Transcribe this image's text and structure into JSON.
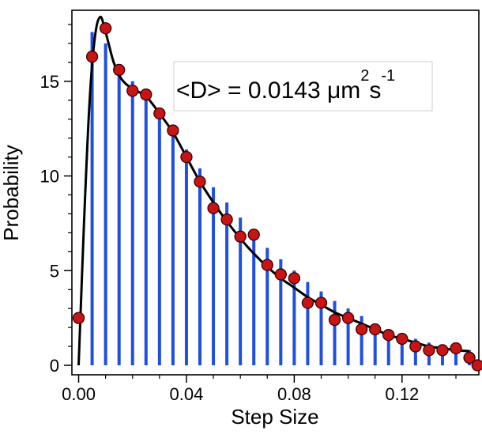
{
  "chart_data": {
    "type": "scatter",
    "xlabel": "Step Size",
    "ylabel": "Probability",
    "xlim": [
      -0.0025,
      0.1485
    ],
    "ylim": [
      -0.5,
      18.75
    ],
    "xticks": [
      0.0,
      0.04,
      0.08,
      0.12
    ],
    "xtick_labels": [
      "0.00",
      "0.04",
      "0.08",
      "0.12"
    ],
    "yticks": [
      0,
      5,
      10,
      15
    ],
    "ytick_labels": [
      "0",
      "5",
      "10",
      "15"
    ],
    "annotation": {
      "main": "<D> = 0.0143 μm",
      "sup1": "2",
      "mid": "s",
      "sup2": "-1"
    },
    "series": [
      {
        "kind": "stems",
        "color": "#1f4fe0",
        "x": [
          0.005,
          0.01,
          0.015,
          0.02,
          0.025,
          0.03,
          0.035,
          0.04,
          0.045,
          0.05,
          0.055,
          0.06,
          0.065,
          0.07,
          0.075,
          0.08,
          0.085,
          0.09,
          0.095,
          0.1,
          0.105,
          0.11,
          0.115,
          0.12,
          0.125,
          0.13,
          0.135,
          0.14,
          0.145
        ],
        "y": [
          17.6,
          17.0,
          15.9,
          15.0,
          14.2,
          13.4,
          12.4,
          11.4,
          10.4,
          9.4,
          8.6,
          7.8,
          7.0,
          6.2,
          5.6,
          5.0,
          4.4,
          3.9,
          3.4,
          3.0,
          2.6,
          2.2,
          1.9,
          1.6,
          1.4,
          1.2,
          1.0,
          0.9,
          0.8
        ]
      },
      {
        "kind": "markers",
        "color": "#c81414",
        "x": [
          0.0,
          0.005,
          0.01,
          0.015,
          0.02,
          0.025,
          0.03,
          0.035,
          0.04,
          0.045,
          0.05,
          0.055,
          0.06,
          0.065,
          0.07,
          0.075,
          0.08,
          0.085,
          0.09,
          0.095,
          0.1,
          0.105,
          0.11,
          0.115,
          0.12,
          0.125,
          0.13,
          0.135,
          0.14,
          0.145,
          0.148
        ],
        "y": [
          2.5,
          16.3,
          17.8,
          15.6,
          14.5,
          14.3,
          13.3,
          12.4,
          11.0,
          9.7,
          8.3,
          7.7,
          6.8,
          6.9,
          5.3,
          4.8,
          4.6,
          3.3,
          3.3,
          2.4,
          2.5,
          1.9,
          1.9,
          1.6,
          1.4,
          1.0,
          0.8,
          0.8,
          0.9,
          0.4,
          0.0
        ]
      },
      {
        "kind": "fit",
        "color": "#000000",
        "x": [
          0.0,
          0.002,
          0.004,
          0.006,
          0.008,
          0.01,
          0.013,
          0.016,
          0.02,
          0.025,
          0.03,
          0.035,
          0.04,
          0.045,
          0.05,
          0.055,
          0.06,
          0.065,
          0.07,
          0.075,
          0.08,
          0.085,
          0.09,
          0.095,
          0.1,
          0.105,
          0.11,
          0.115,
          0.12,
          0.125,
          0.13,
          0.135,
          0.14,
          0.145
        ],
        "y": [
          0.0,
          7.5,
          13.8,
          17.3,
          18.4,
          17.6,
          16.0,
          15.1,
          14.6,
          14.2,
          13.3,
          12.3,
          11.0,
          9.7,
          8.6,
          7.6,
          6.7,
          5.9,
          5.2,
          4.6,
          4.1,
          3.6,
          3.2,
          2.8,
          2.5,
          2.2,
          1.9,
          1.6,
          1.4,
          1.2,
          1.0,
          0.9,
          0.8,
          0.75
        ]
      }
    ],
    "grid": false,
    "legend": "none"
  }
}
